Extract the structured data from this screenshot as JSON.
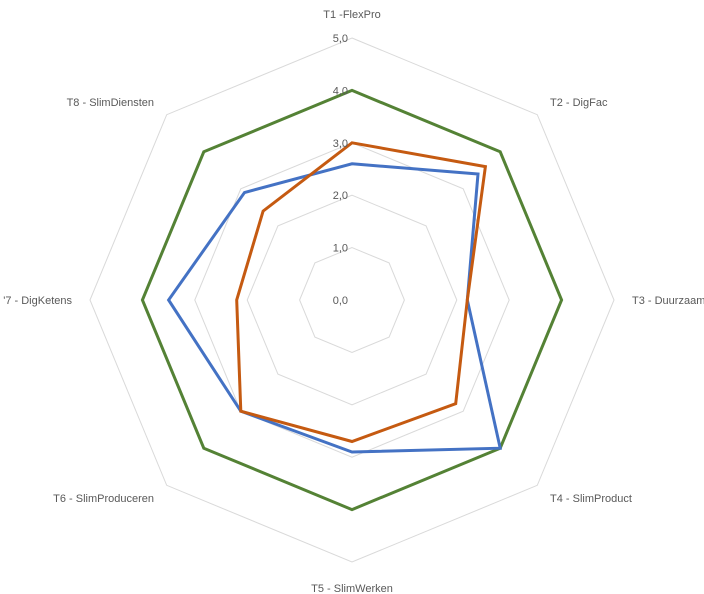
{
  "chart_data": {
    "type": "radar",
    "title": "",
    "categories": [
      "T1 -FlexPro",
      "T2 - DigFac",
      "T3 - Duurzaam",
      "T4 - SlimProduct",
      "T5 - SlimWerken",
      "T6 - SlimProduceren",
      "'7 - DigKetens",
      "T8 - SlimDiensten"
    ],
    "rlim": [
      0,
      5
    ],
    "ticks": [
      "0,0",
      "1,0",
      "2,0",
      "3,0",
      "4,0",
      "5,0"
    ],
    "grid": true,
    "legend": "none",
    "series": [
      {
        "values": [
          4.0,
          4.0,
          4.0,
          4.0,
          4.0,
          4.0,
          4.0,
          4.0
        ],
        "color": "#548235"
      },
      {
        "values": [
          2.6,
          3.4,
          2.2,
          4.0,
          2.9,
          3.0,
          3.5,
          2.9
        ],
        "color": "#4472C4"
      },
      {
        "values": [
          3.0,
          3.6,
          2.2,
          2.8,
          2.7,
          3.0,
          2.2,
          2.4
        ],
        "color": "#C55A11"
      }
    ],
    "grid_color": "#d9d9d9"
  }
}
